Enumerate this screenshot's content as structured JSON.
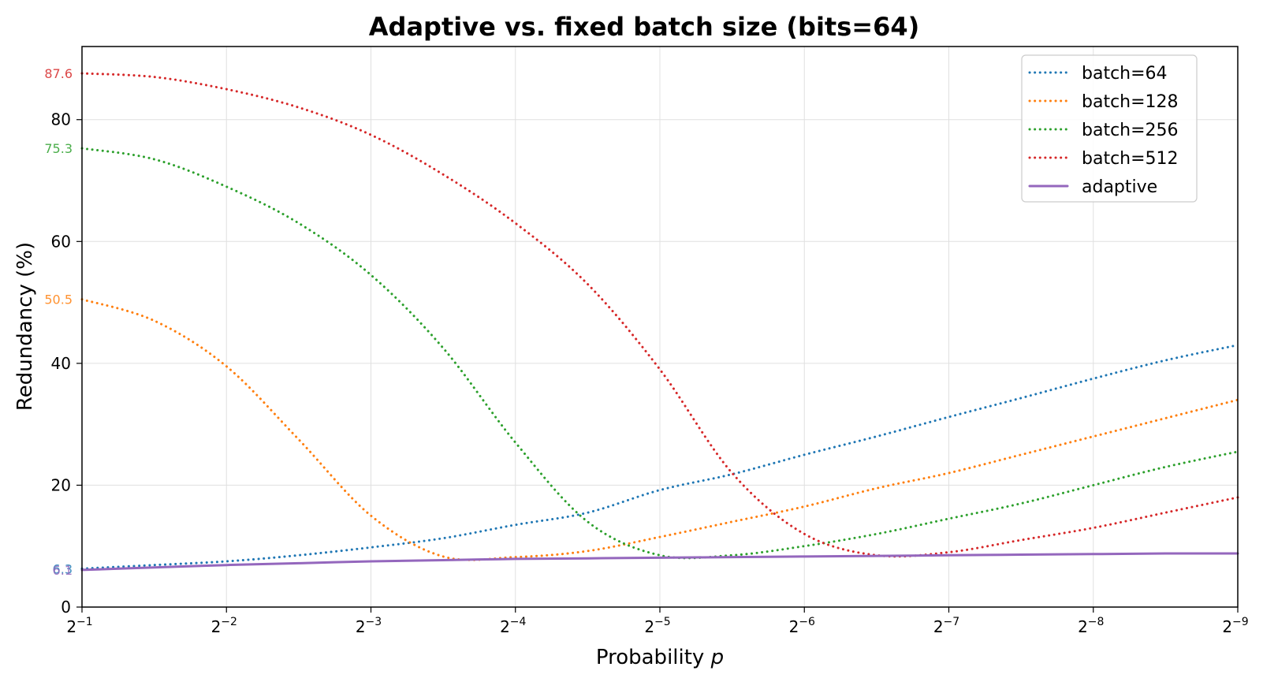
{
  "chart_data": {
    "type": "line",
    "title": "Adaptive vs. fixed batch size (bits=64)",
    "xlabel": "Probability ",
    "xlabel_var": "p",
    "ylabel": "Redundancy (%)",
    "x_scale": "log2",
    "x_tick_base": "2",
    "x_ticks": [
      -1,
      -2,
      -3,
      -4,
      -5,
      -6,
      -7,
      -8,
      -9
    ],
    "x_tick_exponents": [
      "−1",
      "−2",
      "−3",
      "−4",
      "−5",
      "−6",
      "−7",
      "−8",
      "−9"
    ],
    "xlim_log2": [
      -1,
      -9
    ],
    "y_ticks": [
      0,
      20,
      40,
      60,
      80
    ],
    "y_tick_labels": [
      "0",
      "20",
      "40",
      "60",
      "80"
    ],
    "ylim": [
      0,
      92
    ],
    "grid": true,
    "legend_position": "top-right",
    "x_log2": [
      -1,
      -1.5,
      -2,
      -2.5,
      -3,
      -3.5,
      -4,
      -4.5,
      -5,
      -5.5,
      -6,
      -6.5,
      -7,
      -7.5,
      -8,
      -8.5,
      -9
    ],
    "series": [
      {
        "name": "batch=64",
        "style": "dotted",
        "color": "#1f77b4",
        "values": [
          6.3,
          6.9,
          7.5,
          8.5,
          9.8,
          11.3,
          13.5,
          15.5,
          19.2,
          21.8,
          25.0,
          28.0,
          31.2,
          34.3,
          37.5,
          40.5,
          43.0
        ]
      },
      {
        "name": "batch=128",
        "style": "dotted",
        "color": "#ff7f0e",
        "values": [
          50.5,
          47.0,
          39.5,
          27.5,
          15.0,
          8.3,
          8.2,
          9.2,
          11.5,
          14.0,
          16.5,
          19.5,
          22.0,
          25.0,
          28.0,
          31.0,
          34.0
        ]
      },
      {
        "name": "batch=256",
        "style": "dotted",
        "color": "#2ca02c",
        "values": [
          75.3,
          73.5,
          69.0,
          63.0,
          54.5,
          42.5,
          27.0,
          14.0,
          8.5,
          8.5,
          10.0,
          12.0,
          14.5,
          17.0,
          20.0,
          23.0,
          25.5
        ]
      },
      {
        "name": "batch=512",
        "style": "dotted",
        "color": "#d62728",
        "values": [
          87.6,
          87.0,
          85.0,
          82.0,
          77.5,
          71.0,
          63.0,
          53.0,
          39.0,
          22.0,
          12.0,
          8.5,
          9.0,
          11.0,
          13.0,
          15.5,
          18.0
        ]
      },
      {
        "name": "adaptive",
        "style": "solid",
        "color": "#9467bd",
        "values": [
          6.1,
          6.5,
          6.9,
          7.2,
          7.5,
          7.7,
          7.9,
          8.0,
          8.1,
          8.2,
          8.3,
          8.4,
          8.5,
          8.6,
          8.7,
          8.8,
          8.8
        ]
      }
    ],
    "start_labels": [
      {
        "text": "87.6",
        "value": 87.6,
        "color": "#d62728"
      },
      {
        "text": "75.3",
        "value": 75.3,
        "color": "#2ca02c"
      },
      {
        "text": "50.5",
        "value": 50.5,
        "color": "#ff7f0e"
      },
      {
        "text": "6.3",
        "value": 6.3,
        "color": "#1f77b4"
      },
      {
        "text": "6.1",
        "value": 6.1,
        "color": "#9467bd"
      }
    ]
  }
}
